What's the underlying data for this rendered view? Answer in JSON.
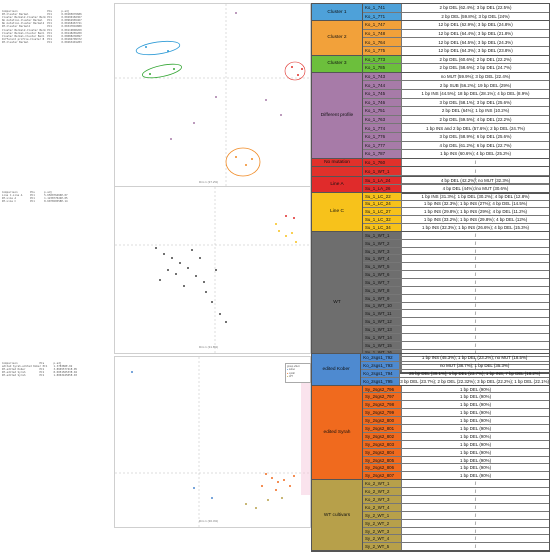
{
  "panel1": {
    "stats_lines": [
      "Comparison                   PCs      p.adj",
      "WT-Cluster Bermel            PC1      0.00185076686",
      "Cluster Bermel2-Cluster Berm PC1      0.00290182367",
      "No mutation-Cluster Bermel   PC1      0.00962965467",
      "No mutation-Cluster Bermel2  PC1      0.00168467741",
      "WT-Cluster Bermel2           PC1      0.00347816880",
      "Cluster Bermel2-Cluster Berm PC1      0.00119890260",
      "Cluster Bermel-Cluster Berm  PC1      0.00148265200",
      "Cluster Bermel-Cluster Berm  PC1      0.00088236897",
      "Different profile-Cluster B  PC1      0.00184709372",
      "WT-Cluster Bermel            PC1      0.00263401283"
    ],
    "xlabel": "Dim 1 (37.2%)",
    "ylabel": "Dim 2 (13.9%)",
    "point_labels": [
      "Ko_1_WT_1",
      "Ko_1_WT_2",
      "Ko_1_WT_3",
      "Ko_1_787",
      "Ko_1_785",
      "Ko_1_773",
      "Ko_1_741",
      "Ko_1_771",
      "Ko_1_764",
      "Ko_1_745"
    ]
  },
  "table1": [
    {
      "group": "Cluster 1",
      "color": "#4ea1d9",
      "rows": [
        [
          "Ko_1_741",
          "2 bp DEL (62.4%); 3 bp DEL (22.5%)"
        ],
        [
          "Ko_1_771",
          "2 bp DEL (59.8%); 3 bp DEL (24%)"
        ]
      ]
    },
    {
      "group": "Cluster 2",
      "color": "#f2a13a",
      "rows": [
        [
          "Ko_1_747",
          "12 bp DEL (62.9%); 3 bp DEL (24.8%)"
        ],
        [
          "Ko_1_748",
          "12 bp DEL (64.4%); 3 bp DEL (21.8%)"
        ],
        [
          "Ko_1_764",
          "12 bp DEL (64.5%); 3 bp DEL (24.3%)"
        ],
        [
          "Ko_1_775",
          "12 bp DEL (64.3%); 3 bp DEL (23.8%)"
        ]
      ]
    },
    {
      "group": "Cluster 3",
      "color": "#6cbf3c",
      "rows": [
        [
          "Ko_1_773",
          "2 bp DEL (60.6%); 2 bp DEL (22.2%)"
        ],
        [
          "Ko_1_785",
          "2 bp DEL (58.6%); 2 bp DEL (24.7%)"
        ]
      ]
    },
    {
      "group": "Different profile",
      "color": "#a77ba8",
      "rows": [
        [
          "Ko_1_743",
          "no MUT (59.9%); 3 bp DEL (22.4%)"
        ],
        [
          "Ko_1_744",
          "2 bp SUB (56.2%); 19 bp DEL (29%)"
        ],
        [
          "Ko_1_745",
          "1 bp INS (44.5%); 18 bp DEL (28.1%); 4 bp DEL (8.9%)"
        ],
        [
          "Ko_1_746",
          "3 bp DEL (58.1%); 3 bp DEL (25.6%)"
        ],
        [
          "Ko_1_751",
          "2 bp DEL (64%); 1 bp INS (10.2%)"
        ],
        [
          "Ko_1_763",
          "2 bp DEL (59.5%); 4 bp DEL (22.2%)"
        ],
        [
          "Ko_1_774",
          "1 bp INS and 2 bp DEL (57.6%); 2 bp DEL (24.7%)"
        ],
        [
          "Ko_1_776",
          "3 bp DEL (58.9%); 6 bp DEL (25.6%)"
        ],
        [
          "Ko_1_777",
          "4 bp DEL (61.2%); 6 bp DEL (22.7%)"
        ],
        [
          "Ko_1_787",
          "1 bp INS (60.6%); 4 bp DEL (25.2%)"
        ]
      ]
    },
    {
      "group": "No mutation",
      "color": "#e0312b",
      "rows": [
        [
          "Ko_1_760",
          "/"
        ]
      ]
    },
    {
      "group": "WT",
      "color": "#e0312b",
      "rows": [
        [
          "Ko_1_WT_1",
          "/"
        ],
        [
          "Ko_1_WT_2",
          "/"
        ],
        [
          "Ko_1_WT_3",
          "/"
        ]
      ]
    }
  ],
  "panel2": {
    "stats_lines": [
      "Comparison        PCs      p.adj",
      "Line C-Line A     PC1      5.650076466E-07",
      "WT-Line A         PC1      1.123877024E-05",
      "WT-Line C         PC1      8.607650558E-14"
    ],
    "xlabel": "Dim 1 (31.8%)",
    "ylabel": "Dim 2 (10.2%)"
  },
  "table2": [
    {
      "group": "Line A",
      "color": "#e02b2b",
      "rows": [
        [
          "Su_1_LA_24",
          "4 bp DEL (42.2%); no MUT (32.3%)"
        ],
        [
          "Su_1_LA_26",
          "4 bp DEL (44%); no MUT (30.6%)"
        ]
      ]
    },
    {
      "group": "Line C",
      "color": "#f7c21b",
      "rows": [
        [
          "Su_1_LC_22",
          "1 bp INS (31.3%); 1 bp DEL (30.2%); 4 bp DEL (12.8%)"
        ],
        [
          "Su_1_LC_24",
          "1 bp INS (32.3%); 1 bp INS (27%); 4 bp DEL (14.5%)"
        ],
        [
          "Su_1_LC_27",
          "1 bp INS (29.8%); 1 bp INS (29%); 4 bp DEL (11.2%)"
        ],
        [
          "Su_1_LC_32",
          "1 bp INS (33.2%); 1 bp INS (29.8%); 4 bp DEL (12%)"
        ],
        [
          "Su_1_LC_34",
          "1 bp INS (32.3%); 1 bp INS (26.6%); 4 bp DEL (15.3%)"
        ]
      ]
    },
    {
      "group": "WT",
      "color": "#6e6e6e",
      "rows": [
        [
          "Su_1_WT_1",
          "/"
        ],
        [
          "Su_1_WT_2",
          "/"
        ],
        [
          "Su_1_WT_3",
          "/"
        ],
        [
          "Su_1_WT_4",
          "/"
        ],
        [
          "Su_1_WT_5",
          "/"
        ],
        [
          "Su_1_WT_6",
          "/"
        ],
        [
          "Su_1_WT_7",
          "/"
        ],
        [
          "Su_1_WT_8",
          "/"
        ],
        [
          "Su_1_WT_9",
          "/"
        ],
        [
          "Su_1_WT_10",
          "/"
        ],
        [
          "Su_1_WT_11",
          "/"
        ],
        [
          "Su_1_WT_12",
          "/"
        ],
        [
          "Su_1_WT_13",
          "/"
        ],
        [
          "Su_1_WT_14",
          "/"
        ],
        [
          "Su_1_WT_15",
          "/"
        ],
        [
          "Su_1_WT_16",
          "/"
        ],
        [
          "Su_1_WT_17",
          "/"
        ],
        [
          "Su_1_WT_18",
          "/"
        ]
      ]
    }
  ],
  "panel3": {
    "stats_lines": [
      "Comparison              PCs      p.adj",
      "edited Syrah-edited Kober PC1    1.378386E-02",
      "WT-edited Kober         PC1      3.866557741E-05",
      "WT-edited Syrah         PC1      8.005156533E-04",
      "WT-edited Syrah         PC1      1.806342505E-03"
    ],
    "legend_title": "group effect",
    "legend_items": [
      "kober",
      "syrah",
      "WT"
    ],
    "xlabel": "Dim 1 (30.4%)",
    "ylabel": "Dim 2 (11.7%)"
  },
  "table3": [
    {
      "group": "edited Kober",
      "color": "#4e8ad0",
      "rows": [
        [
          "Ko_2sgs1_792",
          "1 bp INS (45.3%); 1 bp DEL (23.2%); no MUT (18.5%)"
        ],
        [
          "Ko_2sgs1_793",
          "no MUT (38.7%); 1 bp DEL (35.3%)"
        ],
        [
          "Ko_2sgs1_794",
          "26 bp DEL (39.1%); 1 bp DEL (23.7%); 1 bp INS, 7 bp DEL (18.2%)"
        ],
        [
          "Ko_2sgs1_795",
          "3 bp DEL (23.7%); 2 bp DEL (22.32%); 3 bp DEL (22.2%); 1 bp DEL (22.1%)"
        ]
      ]
    },
    {
      "group": "edited Syrah",
      "color": "#f06a1e",
      "rows": [
        [
          "Sy_2sgs2_796",
          "1 bp DEL (90%)"
        ],
        [
          "Sy_2sgs2_797",
          "1 bp DEL (90%)"
        ],
        [
          "Sy_2sgs2_798",
          "1 bp DEL (90%)"
        ],
        [
          "Sy_2sgs2_799",
          "1 bp DEL (90%)"
        ],
        [
          "Sy_2sgs2_800",
          "1 bp DEL (90%)"
        ],
        [
          "Sy_2sgs2_801",
          "1 bp DEL (90%)"
        ],
        [
          "Sy_2sgs2_802",
          "1 bp DEL (90%)"
        ],
        [
          "Sy_2sgs2_803",
          "1 bp DEL (90%)"
        ],
        [
          "Sy_2sgs2_804",
          "1 bp DEL (90%)"
        ],
        [
          "Sy_2sgs2_805",
          "1 bp DEL (90%)"
        ],
        [
          "Sy_2sgs2_806",
          "1 bp DEL (90%)"
        ],
        [
          "Sy_2sgs2_807",
          "1 bp DEL (90%)"
        ]
      ]
    },
    {
      "group": "WT cultivars",
      "color": "#b7a04a",
      "rows": [
        [
          "Ko_2_WT_1",
          "/"
        ],
        [
          "Ko_2_WT_2",
          "/"
        ],
        [
          "Ko_2_WT_3",
          "/"
        ],
        [
          "Ko_2_WT_4",
          "/"
        ],
        [
          "Sy_2_WT_1",
          "/"
        ],
        [
          "Sy_2_WT_2",
          "/"
        ],
        [
          "Sy_2_WT_3",
          "/"
        ],
        [
          "Sy_2_WT_4",
          "/"
        ],
        [
          "Sy_2_WT_5",
          "/"
        ]
      ]
    }
  ]
}
